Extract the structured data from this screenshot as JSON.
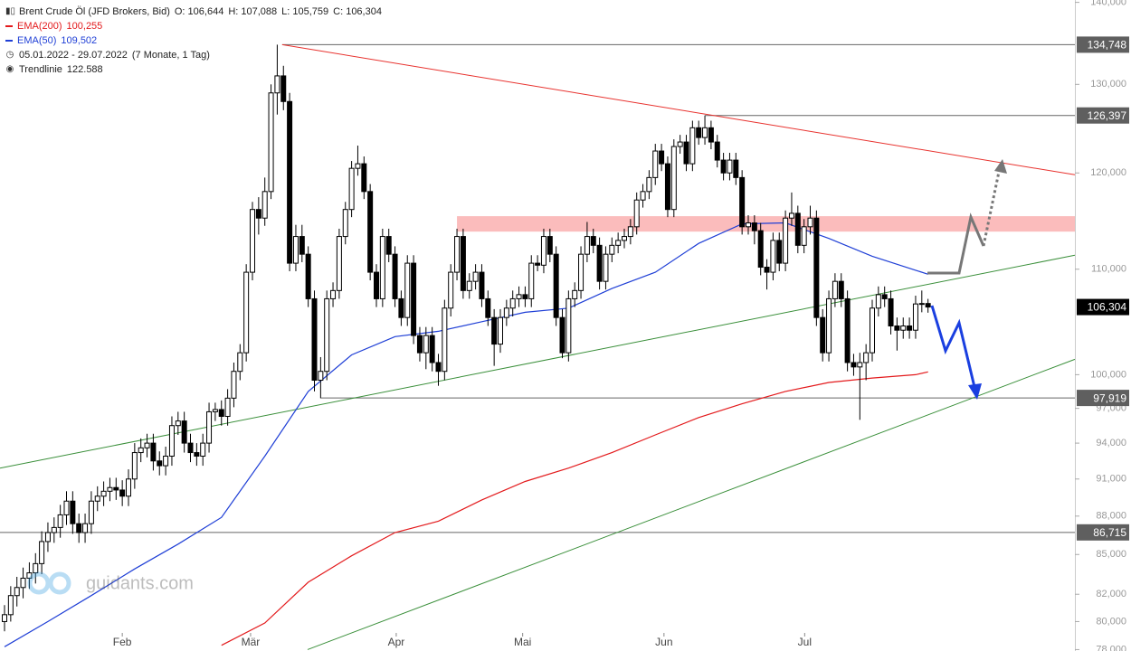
{
  "chart_data": {
    "type": "candlestick",
    "title": "Brent Crude Öl (JFD Brokers, Bid)",
    "ohlc_labels": [
      "O: 106,644",
      "H: 107,088",
      "L: 105,759",
      "C: 106,304"
    ],
    "period": "05.01.2022 - 29.07.2022",
    "period_note": "(7 Monate, 1 Tag)",
    "trendline_legend": {
      "name": "Trendlinie",
      "value_label": "122.588"
    },
    "watermark": "guidants.com",
    "log_scale": true,
    "xlim": [
      -0.73,
      172.7
    ],
    "ylim": [
      77.9,
      140.3
    ],
    "xticks": [
      {
        "value": 19.0,
        "label": "Feb"
      },
      {
        "value": 39.7,
        "label": "Mär"
      },
      {
        "value": 63.2,
        "label": "Apr"
      },
      {
        "value": 83.6,
        "label": "Mai"
      },
      {
        "value": 106.4,
        "label": "Jun"
      },
      {
        "value": 129.1,
        "label": "Jul"
      }
    ],
    "yticks": [
      {
        "value": 140,
        "label": "140,000"
      },
      {
        "value": 130,
        "label": "130,000"
      },
      {
        "value": 120,
        "label": "120,000"
      },
      {
        "value": 110,
        "label": "110,000"
      },
      {
        "value": 100,
        "label": "100,000"
      },
      {
        "value": 97,
        "label": "97,000"
      },
      {
        "value": 94,
        "label": "94,000"
      },
      {
        "value": 91,
        "label": "91,000"
      },
      {
        "value": 88,
        "label": "88,000"
      },
      {
        "value": 85,
        "label": "85,000"
      },
      {
        "value": 82,
        "label": "82,000"
      },
      {
        "value": 80,
        "label": "80,000"
      },
      {
        "value": 78,
        "label": "78,000"
      }
    ],
    "up_color": "#ffffff",
    "down_color": "#000000",
    "last_label": "106,304",
    "candles": [
      [
        80.0,
        81.2,
        79.3,
        80.5
      ],
      [
        80.5,
        82.6,
        80.0,
        81.9
      ],
      [
        81.9,
        83.3,
        81.1,
        82.5
      ],
      [
        82.5,
        84.0,
        81.7,
        83.2
      ],
      [
        83.2,
        84.4,
        82.4,
        83.6
      ],
      [
        83.6,
        85.1,
        82.8,
        84.3
      ],
      [
        84.3,
        86.8,
        83.5,
        86.0
      ],
      [
        86.0,
        87.5,
        85.2,
        86.7
      ],
      [
        86.7,
        87.9,
        85.9,
        87.1
      ],
      [
        87.1,
        88.9,
        86.3,
        88.1
      ],
      [
        88.1,
        90.0,
        87.3,
        89.2
      ],
      [
        89.2,
        90.0,
        86.6,
        87.4
      ],
      [
        87.4,
        88.2,
        85.9,
        86.7
      ],
      [
        86.7,
        88.2,
        85.9,
        87.4
      ],
      [
        87.4,
        90.0,
        86.6,
        89.2
      ],
      [
        89.2,
        90.4,
        88.4,
        89.6
      ],
      [
        89.6,
        90.8,
        88.8,
        90.0
      ],
      [
        90.0,
        91.1,
        89.2,
        90.3
      ],
      [
        90.3,
        91.1,
        89.3,
        90.1
      ],
      [
        90.1,
        90.9,
        88.8,
        89.6
      ],
      [
        89.6,
        91.8,
        88.8,
        91.0
      ],
      [
        91.0,
        94.0,
        90.2,
        93.2
      ],
      [
        93.2,
        94.4,
        92.4,
        93.6
      ],
      [
        93.6,
        94.8,
        92.8,
        94.0
      ],
      [
        94.0,
        94.8,
        91.7,
        92.5
      ],
      [
        92.5,
        93.3,
        91.3,
        92.1
      ],
      [
        92.1,
        93.7,
        91.3,
        92.9
      ],
      [
        92.9,
        96.3,
        92.1,
        95.5
      ],
      [
        95.5,
        96.7,
        94.7,
        95.9
      ],
      [
        95.9,
        96.7,
        93.2,
        94.0
      ],
      [
        94.0,
        94.8,
        92.4,
        93.2
      ],
      [
        93.2,
        94.0,
        92.1,
        92.9
      ],
      [
        92.9,
        94.8,
        92.1,
        94.0
      ],
      [
        94.0,
        97.5,
        93.2,
        96.7
      ],
      [
        96.7,
        97.5,
        95.9,
        96.9
      ],
      [
        96.9,
        97.7,
        95.5,
        96.3
      ],
      [
        96.3,
        98.7,
        95.5,
        97.9
      ],
      [
        97.9,
        101.1,
        97.1,
        100.3
      ],
      [
        100.3,
        102.8,
        99.5,
        102.0
      ],
      [
        102.0,
        110.5,
        101.2,
        109.7
      ],
      [
        109.7,
        116.9,
        108.9,
        116.1
      ],
      [
        116.1,
        117.4,
        113.5,
        115.2
      ],
      [
        115.2,
        119.5,
        114.4,
        118.0
      ],
      [
        118.0,
        130.0,
        117.2,
        129.0
      ],
      [
        129.0,
        134.748,
        126.5,
        131.0
      ],
      [
        131.0,
        132.2,
        127.0,
        128.0
      ],
      [
        128.0,
        129.0,
        109.8,
        110.6
      ],
      [
        110.6,
        114.5,
        109.8,
        113.3
      ],
      [
        113.3,
        114.5,
        110.7,
        111.5
      ],
      [
        111.5,
        112.3,
        106.3,
        107.1
      ],
      [
        107.1,
        107.9,
        98.5,
        99.5
      ],
      [
        99.5,
        101.6,
        97.9,
        100.3
      ],
      [
        100.3,
        107.9,
        99.5,
        107.1
      ],
      [
        107.1,
        108.7,
        106.3,
        107.9
      ],
      [
        107.9,
        114.1,
        107.1,
        113.3
      ],
      [
        113.3,
        116.9,
        112.5,
        116.1
      ],
      [
        116.1,
        121.3,
        115.3,
        120.5
      ],
      [
        120.5,
        123.0,
        119.7,
        121.0
      ],
      [
        121.0,
        121.8,
        117.2,
        118.0
      ],
      [
        118.0,
        118.8,
        108.9,
        109.7
      ],
      [
        109.7,
        110.5,
        106.3,
        107.1
      ],
      [
        107.1,
        114.1,
        106.3,
        113.3
      ],
      [
        113.3,
        114.1,
        110.7,
        111.5
      ],
      [
        111.5,
        112.3,
        106.3,
        107.1
      ],
      [
        107.1,
        107.9,
        104.5,
        105.3
      ],
      [
        105.3,
        111.4,
        104.5,
        110.6
      ],
      [
        110.6,
        111.4,
        102.8,
        103.6
      ],
      [
        103.6,
        104.4,
        101.2,
        102.0
      ],
      [
        102.0,
        104.4,
        100.5,
        103.6
      ],
      [
        103.6,
        104.4,
        100.3,
        101.1
      ],
      [
        101.1,
        101.9,
        99.0,
        100.3
      ],
      [
        100.3,
        107.0,
        99.5,
        106.2
      ],
      [
        106.2,
        110.5,
        105.4,
        109.7
      ],
      [
        109.7,
        114.1,
        108.9,
        113.3
      ],
      [
        113.3,
        114.1,
        107.1,
        107.9
      ],
      [
        107.9,
        109.6,
        107.1,
        108.8
      ],
      [
        108.8,
        110.5,
        108.0,
        109.7
      ],
      [
        109.7,
        110.5,
        106.3,
        107.1
      ],
      [
        107.1,
        107.9,
        104.5,
        105.3
      ],
      [
        105.3,
        106.1,
        100.8,
        102.8
      ],
      [
        102.8,
        106.1,
        102.0,
        105.3
      ],
      [
        105.3,
        107.0,
        104.5,
        106.2
      ],
      [
        106.2,
        107.9,
        105.4,
        107.1
      ],
      [
        107.1,
        108.3,
        106.3,
        107.5
      ],
      [
        107.5,
        108.3,
        106.3,
        107.1
      ],
      [
        107.1,
        111.4,
        106.3,
        110.6
      ],
      [
        110.6,
        111.4,
        109.8,
        110.4
      ],
      [
        110.4,
        114.1,
        109.6,
        113.3
      ],
      [
        113.3,
        114.1,
        110.7,
        111.5
      ],
      [
        111.5,
        112.3,
        104.5,
        105.3
      ],
      [
        105.3,
        106.1,
        101.5,
        102.0
      ],
      [
        102.0,
        107.9,
        101.2,
        107.1
      ],
      [
        107.1,
        108.7,
        106.3,
        107.9
      ],
      [
        107.9,
        112.3,
        107.1,
        111.5
      ],
      [
        111.5,
        114.8,
        110.7,
        113.3
      ],
      [
        113.3,
        114.1,
        111.6,
        112.4
      ],
      [
        112.4,
        113.2,
        108.0,
        108.8
      ],
      [
        108.8,
        112.3,
        108.0,
        111.5
      ],
      [
        111.5,
        113.2,
        110.7,
        112.4
      ],
      [
        112.4,
        113.7,
        111.6,
        112.9
      ],
      [
        112.9,
        114.1,
        112.1,
        113.3
      ],
      [
        113.3,
        115.1,
        112.5,
        114.3
      ],
      [
        114.3,
        117.9,
        113.5,
        117.1
      ],
      [
        117.1,
        118.8,
        116.3,
        118.0
      ],
      [
        118.0,
        120.3,
        117.2,
        119.5
      ],
      [
        119.5,
        123.2,
        118.7,
        122.4
      ],
      [
        122.4,
        123.2,
        120.2,
        121.0
      ],
      [
        121.0,
        121.8,
        115.3,
        116.1
      ],
      [
        116.1,
        123.7,
        115.3,
        122.9
      ],
      [
        122.9,
        124.2,
        122.1,
        123.4
      ],
      [
        123.4,
        124.2,
        120.2,
        121.0
      ],
      [
        121.0,
        125.8,
        120.2,
        125.0
      ],
      [
        125.0,
        125.8,
        123.1,
        123.9
      ],
      [
        123.9,
        126.397,
        123.1,
        125.0
      ],
      [
        125.0,
        125.8,
        122.6,
        123.4
      ],
      [
        123.4,
        124.2,
        120.6,
        121.4
      ],
      [
        121.4,
        122.2,
        119.2,
        120.0
      ],
      [
        120.0,
        122.2,
        119.2,
        121.4
      ],
      [
        121.4,
        122.2,
        118.7,
        119.5
      ],
      [
        119.5,
        120.3,
        113.5,
        114.3
      ],
      [
        114.3,
        115.5,
        113.5,
        114.7
      ],
      [
        114.7,
        115.5,
        112.5,
        113.9
      ],
      [
        113.9,
        114.7,
        109.4,
        110.2
      ],
      [
        110.2,
        111.0,
        108.0,
        109.7
      ],
      [
        109.7,
        113.7,
        108.9,
        112.9
      ],
      [
        112.9,
        113.7,
        109.8,
        110.6
      ],
      [
        110.6,
        116.0,
        109.8,
        115.2
      ],
      [
        115.2,
        117.9,
        114.4,
        115.7
      ],
      [
        115.7,
        116.5,
        111.6,
        112.4
      ],
      [
        112.4,
        115.1,
        111.6,
        114.3
      ],
      [
        114.3,
        116.5,
        113.5,
        115.2
      ],
      [
        115.2,
        116.0,
        104.5,
        105.3
      ],
      [
        105.3,
        106.1,
        101.2,
        102.0
      ],
      [
        102.0,
        107.9,
        101.2,
        107.1
      ],
      [
        107.1,
        109.6,
        106.3,
        108.8
      ],
      [
        108.8,
        109.6,
        106.3,
        107.1
      ],
      [
        107.1,
        107.9,
        100.3,
        101.1
      ],
      [
        101.1,
        101.9,
        99.9,
        100.7
      ],
      [
        100.7,
        102.0,
        96.0,
        101.1
      ],
      [
        101.1,
        102.8,
        99.5,
        102.0
      ],
      [
        102.0,
        107.0,
        101.2,
        106.2
      ],
      [
        106.2,
        108.3,
        105.4,
        107.5
      ],
      [
        107.5,
        108.3,
        106.3,
        107.1
      ],
      [
        107.1,
        107.9,
        103.7,
        104.5
      ],
      [
        104.5,
        105.3,
        102.2,
        104.1
      ],
      [
        104.1,
        105.3,
        103.3,
        104.5
      ],
      [
        104.5,
        105.3,
        103.3,
        104.1
      ],
      [
        104.1,
        107.4,
        103.3,
        106.6
      ],
      [
        106.6,
        107.9,
        105.8,
        106.644
      ],
      [
        106.644,
        107.088,
        105.759,
        106.304
      ]
    ],
    "series": [
      {
        "name": "EMA(200)",
        "value_label": "100,255",
        "color": "#e31a1c",
        "x": [
          35,
          42,
          49,
          56,
          63,
          70,
          77,
          84,
          91,
          98,
          105,
          112,
          119,
          126,
          133,
          140,
          147,
          149
        ],
        "values": [
          78.3,
          79.9,
          82.9,
          84.9,
          86.7,
          87.6,
          89.3,
          90.8,
          91.9,
          93.2,
          94.7,
          96.2,
          97.4,
          98.5,
          99.3,
          99.7,
          100.0,
          100.255
        ]
      },
      {
        "name": "EMA(50)",
        "value_label": "109,502",
        "color": "#1f3fd6",
        "x": [
          0,
          7,
          14,
          21,
          28,
          35,
          42,
          49,
          56,
          63,
          70,
          77,
          84,
          91,
          98,
          105,
          112,
          119,
          126,
          133,
          140,
          147,
          149
        ],
        "values": [
          78.2,
          80.0,
          81.9,
          83.9,
          85.8,
          87.9,
          92.9,
          98.5,
          101.8,
          103.5,
          104.0,
          104.9,
          105.8,
          106.2,
          108.1,
          109.7,
          112.6,
          114.6,
          114.7,
          113.1,
          111.3,
          109.9,
          109.502
        ]
      }
    ],
    "trendlines": [
      {
        "color": "#e8322e",
        "x": [
          44.8,
          172.7
        ],
        "values": [
          134.748,
          119.8
        ]
      },
      {
        "color": "#3a8f3a",
        "x": [
          -0.73,
          172.7
        ],
        "values": [
          91.9,
          111.4
        ]
      },
      {
        "color": "#3a8f3a",
        "x": [
          48.9,
          172.7
        ],
        "values": [
          78.0,
          101.4
        ]
      }
    ],
    "levels": [
      {
        "value": 134.748,
        "label": "134,748",
        "x": 44.8
      },
      {
        "value": 126.397,
        "label": "126,397",
        "x": 113
      },
      {
        "value": 97.919,
        "label": "97,919",
        "x": 51
      },
      {
        "value": 86.715,
        "label": "86,715",
        "x": -0.73
      }
    ],
    "zone": {
      "low": 113.8,
      "high": 115.4,
      "x": 73,
      "color": "#fbbcbc"
    }
  }
}
